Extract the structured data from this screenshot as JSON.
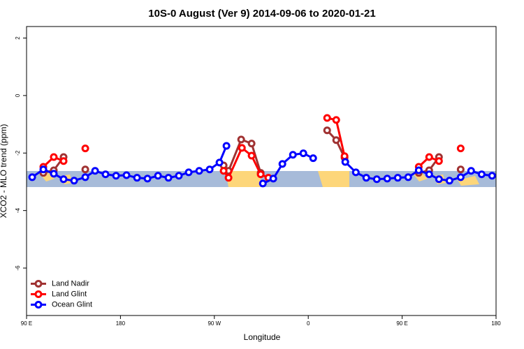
{
  "chart_data": {
    "type": "line",
    "title": "10S-0 August (Ver 9)   2014-09-06 to 2020-01-21",
    "xlabel": "Longitude",
    "ylabel": "XCO2 - MLO trend (ppm)",
    "xlim": [
      90,
      540
    ],
    "ylim": [
      -7.65,
      2.4
    ],
    "xticks": [
      {
        "value": 90,
        "label": "90 E"
      },
      180,
      {
        "value": 270,
        "label": "90 W"
      },
      {
        "value": 360,
        "label": "0"
      },
      {
        "value": 450,
        "label": "90 E"
      },
      {
        "value": 540,
        "label": "180"
      }
    ],
    "yticks": [
      2,
      0,
      -2,
      -4,
      -6
    ],
    "legend": "bottomleft",
    "series": [
      {
        "name": "Land Nadir",
        "color": "#a03232",
        "x": [
          106.1,
          116.1,
          125.5,
          null,
          146.3,
          null,
          278.9,
          283.6,
          295.7,
          305.7,
          314.4,
          null,
          378.1,
          386.8,
          394.8,
          null,
          465.9,
          475.9,
          485.3,
          null,
          506.1
        ],
        "values": [
          -2.69,
          -2.6,
          -2.14,
          null,
          -2.57,
          null,
          -2.43,
          -2.62,
          -1.53,
          -1.67,
          -2.69,
          null,
          -1.21,
          -1.55,
          -2.16,
          null,
          -2.69,
          -2.6,
          -2.14,
          null,
          -2.57
        ]
      },
      {
        "name": "Land Glint",
        "color": "#ff0000",
        "x": [
          106.1,
          116.1,
          125.5,
          null,
          146.3,
          null,
          278.9,
          283.6,
          296.4,
          305.7,
          314.4,
          321.8,
          null,
          378.1,
          386.8,
          394.8,
          null,
          465.9,
          475.9,
          485.3,
          null,
          506.1
        ],
        "values": [
          -2.48,
          -2.14,
          -2.28,
          null,
          -1.84,
          null,
          -2.62,
          -2.86,
          -1.82,
          -2.09,
          -2.74,
          -2.86,
          null,
          -0.78,
          -0.85,
          -2.11,
          null,
          -2.48,
          -2.14,
          -2.28,
          null,
          -1.84
        ]
      },
      {
        "name": "Ocean Glint",
        "color": "#0000ff",
        "x": [
          95.4,
          106.1,
          116.1,
          125.5,
          135.6,
          146.3,
          155.7,
          165.7,
          175.8,
          185.8,
          195.9,
          205.9,
          216,
          226,
          236,
          245.4,
          255.5,
          265.5,
          274.9,
          281.6,
          null,
          316.5,
          326.5,
          335.2,
          345.3,
          355.3,
          364.7,
          null,
          395.5,
          405.6,
          415.6,
          425.7,
          435.7,
          445.8,
          455.8,
          465.9,
          475.9,
          485.3,
          495.4,
          506.1,
          516.1,
          526.2,
          536.2
        ],
        "values": [
          -2.84,
          -2.57,
          -2.72,
          -2.91,
          -2.96,
          -2.84,
          -2.62,
          -2.74,
          -2.79,
          -2.77,
          -2.86,
          -2.89,
          -2.79,
          -2.86,
          -2.79,
          -2.67,
          -2.62,
          -2.57,
          -2.33,
          -1.75,
          null,
          -3.06,
          -2.89,
          -2.38,
          -2.06,
          -2.01,
          -2.18,
          null,
          -2.31,
          -2.67,
          -2.86,
          -2.91,
          -2.89,
          -2.86,
          -2.84,
          -2.6,
          -2.74,
          -2.91,
          -2.96,
          -2.84,
          -2.62,
          -2.74,
          -2.79
        ]
      }
    ]
  }
}
